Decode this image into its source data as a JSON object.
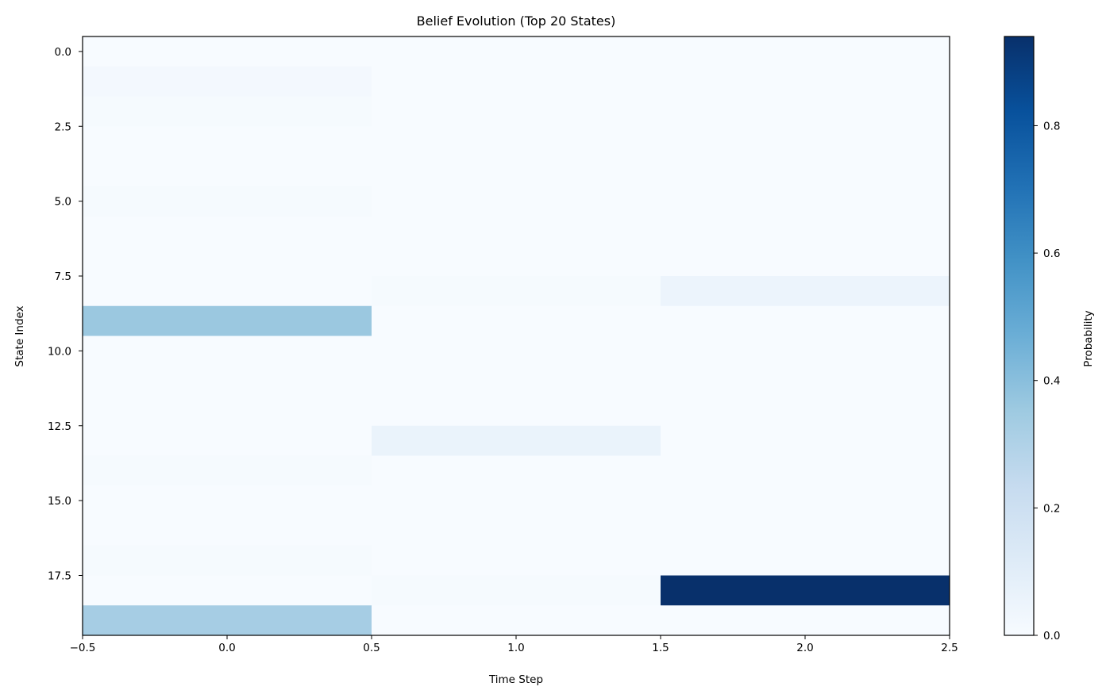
{
  "chart_data": {
    "type": "heatmap",
    "title": "Belief Evolution (Top 20 States)",
    "xlabel": "Time Step",
    "ylabel": "State Index",
    "xlim": [
      -0.5,
      2.5
    ],
    "ylim": [
      19.5,
      -0.5
    ],
    "x_ticks": [
      -0.5,
      0.0,
      0.5,
      1.0,
      1.5,
      2.0,
      2.5
    ],
    "x_tick_labels": [
      "−0.5",
      "0.0",
      "0.5",
      "1.0",
      "1.5",
      "2.0",
      "2.5"
    ],
    "y_ticks": [
      0.0,
      2.5,
      5.0,
      7.5,
      10.0,
      12.5,
      15.0,
      17.5
    ],
    "y_tick_labels": [
      "0.0",
      "2.5",
      "5.0",
      "7.5",
      "10.0",
      "12.5",
      "15.0",
      "17.5"
    ],
    "time_steps": [
      0,
      1,
      2
    ],
    "states": [
      0,
      1,
      2,
      3,
      4,
      5,
      6,
      7,
      8,
      9,
      10,
      11,
      12,
      13,
      14,
      15,
      16,
      17,
      18,
      19
    ],
    "values": [
      [
        0.0,
        0.0,
        0.0
      ],
      [
        0.02,
        0.0,
        0.0
      ],
      [
        0.01,
        0.0,
        0.0
      ],
      [
        0.0,
        0.0,
        0.0
      ],
      [
        0.0,
        0.0,
        0.0
      ],
      [
        0.01,
        0.0,
        0.0
      ],
      [
        0.0,
        0.0,
        0.0
      ],
      [
        0.0,
        0.0,
        0.0
      ],
      [
        0.0,
        0.01,
        0.05
      ],
      [
        0.36,
        0.0,
        0.0
      ],
      [
        0.0,
        0.0,
        0.0
      ],
      [
        0.0,
        0.0,
        0.0
      ],
      [
        0.0,
        0.0,
        0.0
      ],
      [
        0.0,
        0.06,
        0.0
      ],
      [
        0.01,
        0.0,
        0.0
      ],
      [
        0.0,
        0.0,
        0.0
      ],
      [
        0.0,
        0.0,
        0.0
      ],
      [
        0.01,
        0.0,
        0.0
      ],
      [
        0.0,
        0.01,
        0.94
      ],
      [
        0.33,
        0.0,
        0.0
      ]
    ],
    "colormap": "Blues",
    "color_range": [
      0.0,
      0.94
    ],
    "colorbar": {
      "label": "Probability",
      "ticks": [
        0.0,
        0.2,
        0.4,
        0.6,
        0.8
      ],
      "tick_labels": [
        "0.0",
        "0.2",
        "0.4",
        "0.6",
        "0.8"
      ]
    },
    "grid": false,
    "legend": "none"
  }
}
